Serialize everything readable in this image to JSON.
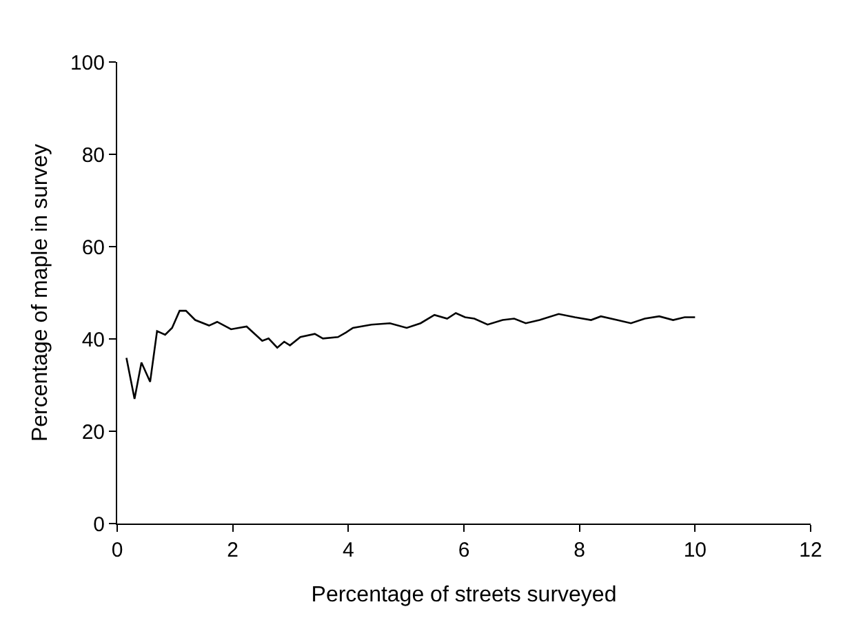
{
  "chart_data": {
    "type": "line",
    "xlabel": "Percentage of streets surveyed",
    "ylabel": "Percentage of maple in survey",
    "series": [
      {
        "color": "#000000",
        "x": [
          0.16,
          0.3,
          0.42,
          0.57,
          0.69,
          0.83,
          0.95,
          1.08,
          1.19,
          1.35,
          1.59,
          1.73,
          1.97,
          2.24,
          2.51,
          2.62,
          2.77,
          2.89,
          2.99,
          3.17,
          3.42,
          3.56,
          3.82,
          3.96,
          4.08,
          4.4,
          4.72,
          5.01,
          5.25,
          5.49,
          5.71,
          5.86,
          6.02,
          6.18,
          6.41,
          6.67,
          6.87,
          7.07,
          7.31,
          7.64,
          7.92,
          8.2,
          8.37,
          8.65,
          8.89,
          9.13,
          9.38,
          9.62,
          9.82,
          10.0
        ],
        "values": [
          35.9,
          27.0,
          34.9,
          30.7,
          41.7,
          40.9,
          42.4,
          46.1,
          46.1,
          44.1,
          42.9,
          43.7,
          42.1,
          42.7,
          39.6,
          40.1,
          38.1,
          39.4,
          38.6,
          40.4,
          41.1,
          40.1,
          40.4,
          41.4,
          42.4,
          43.1,
          43.4,
          42.4,
          43.4,
          45.2,
          44.4,
          45.6,
          44.7,
          44.4,
          43.1,
          44.1,
          44.4,
          43.4,
          44.1,
          45.4,
          44.7,
          44.1,
          44.9,
          44.1,
          43.4,
          44.4,
          44.9,
          44.1,
          44.7,
          44.7
        ]
      }
    ],
    "xlim": [
      0,
      12
    ],
    "xticks": [
      0,
      2,
      4,
      6,
      8,
      10,
      12
    ],
    "ylim": [
      0,
      100
    ],
    "yticks": [
      0,
      20,
      40,
      60,
      80,
      100
    ],
    "marker": "none",
    "line_style": "solid"
  }
}
